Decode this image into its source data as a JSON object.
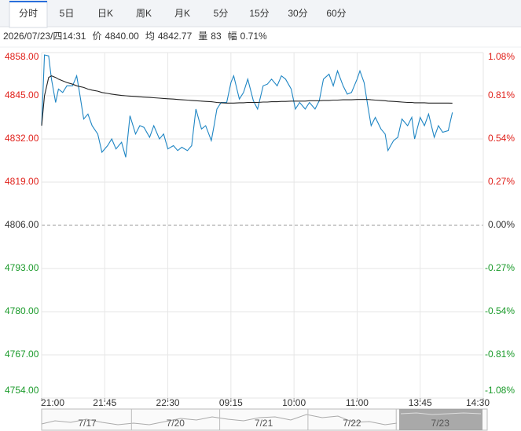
{
  "tabs": [
    "分时",
    "5日",
    "日K",
    "周K",
    "月K",
    "5分",
    "15分",
    "30分",
    "60分"
  ],
  "active_tab": 0,
  "info": {
    "time": "2026/07/23/四14:31",
    "items": [
      {
        "label": "价",
        "value": "4840.00"
      },
      {
        "label": "均",
        "value": "4842.77"
      },
      {
        "label": "量",
        "value": "83"
      },
      {
        "label": "幅",
        "value": "0.71%"
      }
    ]
  },
  "chart_data": {
    "type": "line",
    "x": [
      0,
      2,
      5,
      7,
      10,
      12,
      15,
      18,
      22,
      25,
      27,
      30,
      33,
      36,
      40,
      43,
      47,
      50,
      53,
      57,
      60,
      63,
      67,
      70,
      73,
      77,
      80,
      84,
      87,
      90,
      94,
      97,
      100,
      104,
      107,
      110,
      114,
      117,
      121,
      123,
      125,
      128,
      132,
      135,
      137,
      141,
      144,
      147,
      151,
      154,
      158,
      161,
      164,
      168,
      171,
      174,
      178,
      181,
      184,
      188,
      191,
      195,
      198,
      201,
      205,
      208,
      211,
      215,
      218,
      221,
      225,
      227,
      230,
      233,
      235,
      238,
      242,
      245,
      247,
      251,
      254,
      257,
      261,
      264,
      266,
      270,
      273,
      276,
      280,
      283,
      286,
      290,
      293
    ],
    "series": [
      {
        "color": "#1f86c4",
        "values": [
          4836,
          4857.3,
          4857,
          4850,
          4843,
          4847,
          4846,
          4848,
          4848,
          4851,
          4846,
          4838,
          4839.5,
          4836,
          4833.5,
          4828,
          4830,
          4832,
          4829,
          4831,
          4826.5,
          4839,
          4833.5,
          4836,
          4835.5,
          4832.5,
          4836,
          4832,
          4833.5,
          4829,
          4830,
          4828.5,
          4829.5,
          4828.5,
          4830,
          4841,
          4835,
          4836,
          4831.5,
          4836,
          4841,
          4843,
          4843,
          4849,
          4851,
          4844,
          4846,
          4850,
          4843.5,
          4841,
          4848,
          4848.5,
          4850,
          4848,
          4851,
          4850,
          4847,
          4841,
          4843,
          4841,
          4843,
          4841,
          4843.5,
          4850,
          4851.5,
          4848,
          4852.5,
          4848,
          4845.5,
          4846,
          4850,
          4852.5,
          4849,
          4841,
          4836,
          4838.5,
          4835,
          4833.5,
          4828.5,
          4831.5,
          4832.5,
          4838,
          4836,
          4838.5,
          4832,
          4838.5,
          4836,
          4839.5,
          4832.5,
          4836,
          4834,
          4834.5,
          4840
        ]
      },
      {
        "color": "#222222",
        "values": [
          4836,
          4845,
          4850.5,
          4851,
          4850.5,
          4850,
          4849.5,
          4849,
          4848.5,
          4848,
          4847.8,
          4847.5,
          4847,
          4846.7,
          4846.4,
          4846,
          4845.7,
          4845.5,
          4845.3,
          4845.1,
          4845,
          4844.9,
          4844.8,
          4844.7,
          4844.6,
          4844.5,
          4844.4,
          4844.3,
          4844.2,
          4844.1,
          4844,
          4843.9,
          4843.8,
          4843.7,
          4843.6,
          4843.5,
          4843.4,
          4843.3,
          4843.2,
          4843.1,
          4843,
          4842.9,
          4842.8,
          4842.8,
          4842.8,
          4842.9,
          4842.9,
          4843,
          4843,
          4843,
          4843.1,
          4843.1,
          4843.2,
          4843.2,
          4843.3,
          4843.3,
          4843.4,
          4843.4,
          4843.4,
          4843.4,
          4843.5,
          4843.5,
          4843.5,
          4843.6,
          4843.6,
          4843.7,
          4843.7,
          4843.8,
          4843.8,
          4843.8,
          4843.9,
          4843.9,
          4843.9,
          4843.9,
          4843.8,
          4843.7,
          4843.6,
          4843.5,
          4843.4,
          4843.3,
          4843.2,
          4843.1,
          4843,
          4843,
          4842.9,
          4842.9,
          4842.9,
          4842.8,
          4842.8,
          4842.8,
          4842.8,
          4842.8,
          4842.77
        ]
      }
    ],
    "xlim": [
      0,
      315
    ],
    "xticks": [
      {
        "value": 0,
        "label": "21:00"
      },
      {
        "value": 45,
        "label": "21:45"
      },
      {
        "value": 90,
        "label": "22:30"
      },
      {
        "value": 135,
        "label": "09:15"
      },
      {
        "value": 180,
        "label": "10:00"
      },
      {
        "value": 225,
        "label": "11:00"
      },
      {
        "value": 270,
        "label": "13:45"
      },
      {
        "value": 315,
        "label": "14:30"
      }
    ],
    "ylim": [
      4754,
      4858
    ],
    "yticks": [
      {
        "value": 4858,
        "label": "4858.00"
      },
      {
        "value": 4845,
        "label": "4845.00"
      },
      {
        "value": 4832,
        "label": "4832.00"
      },
      {
        "value": 4819,
        "label": "4819.00"
      },
      {
        "value": 4806,
        "label": "4806.00"
      },
      {
        "value": 4793,
        "label": "4793.00"
      },
      {
        "value": 4780,
        "label": "4780.00"
      },
      {
        "value": 4767,
        "label": "4767.00"
      },
      {
        "value": 4754,
        "label": "4754.00"
      }
    ],
    "y2lim": [
      -1.08,
      1.08
    ],
    "y2ticks": [
      {
        "value": 1.08,
        "label": "1.08%"
      },
      {
        "value": 0.81,
        "label": "0.81%"
      },
      {
        "value": 0.54,
        "label": "0.54%"
      },
      {
        "value": 0.27,
        "label": "0.27%"
      },
      {
        "value": 0,
        "label": "0.00%"
      },
      {
        "value": -0.27,
        "label": "-0.27%"
      },
      {
        "value": -0.54,
        "label": "-0.54%"
      },
      {
        "value": -0.81,
        "label": "-0.81%"
      },
      {
        "value": -1.08,
        "label": "-1.08%"
      }
    ],
    "reference": 4806,
    "up_color": "#e0201a",
    "down_color": "#1a9a2a",
    "grid": true,
    "navigator": [
      "7/17",
      "7/20",
      "7/21",
      "7/22",
      "7/23"
    ]
  }
}
